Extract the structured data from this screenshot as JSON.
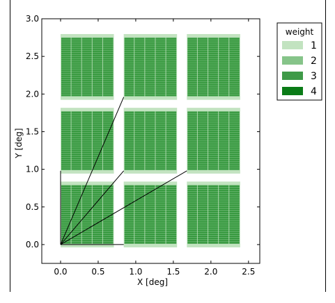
{
  "chart_data": {
    "type": "heatmap",
    "xlabel": "X  [deg]",
    "ylabel": "Y  [deg]",
    "xlim": [
      -0.25,
      2.65
    ],
    "ylim": [
      -0.25,
      3.0
    ],
    "xticks": [
      0.0,
      0.5,
      1.0,
      1.5,
      2.0,
      2.5
    ],
    "xtick_labels": [
      "0.0",
      "0.5",
      "1.0",
      "1.5",
      "2.0",
      "2.5"
    ],
    "yticks": [
      0.0,
      0.5,
      1.0,
      1.5,
      2.0,
      2.5,
      3.0
    ],
    "ytick_labels": [
      "0.0",
      "0.5",
      "1.0",
      "1.5",
      "2.0",
      "2.5",
      "3.0"
    ],
    "grid": false,
    "tile_grid": {
      "columns": [
        [
          0.0,
          0.7
        ],
        [
          0.84,
          1.54
        ],
        [
          1.68,
          2.38
        ]
      ],
      "rows": [
        [
          0.0,
          0.8
        ],
        [
          0.98,
          1.78
        ],
        [
          1.96,
          2.76
        ]
      ]
    },
    "lines": [
      {
        "x": [
          0.0,
          0.84
        ],
        "y": [
          0.0,
          1.96
        ]
      },
      {
        "x": [
          0.0,
          0.84
        ],
        "y": [
          0.0,
          0.98
        ]
      },
      {
        "x": [
          0.0,
          1.68
        ],
        "y": [
          0.0,
          0.98
        ]
      },
      {
        "x": [
          0.0,
          0.0
        ],
        "y": [
          0.0,
          0.98
        ]
      },
      {
        "x": [
          0.0,
          0.84
        ],
        "y": [
          0.0,
          0.0
        ]
      }
    ],
    "legend": {
      "title": "weight",
      "placement": "upper-right-outside",
      "entries": [
        {
          "label": "1",
          "color": "#c2e3c0"
        },
        {
          "label": "2",
          "color": "#86c489"
        },
        {
          "label": "3",
          "color": "#3f9a48"
        },
        {
          "label": "4",
          "color": "#0a7b17"
        }
      ]
    },
    "colors": {
      "tile_light": "#c2e3c0",
      "tile_mid": "#5cae63",
      "tile_dark": "#17851f"
    }
  }
}
